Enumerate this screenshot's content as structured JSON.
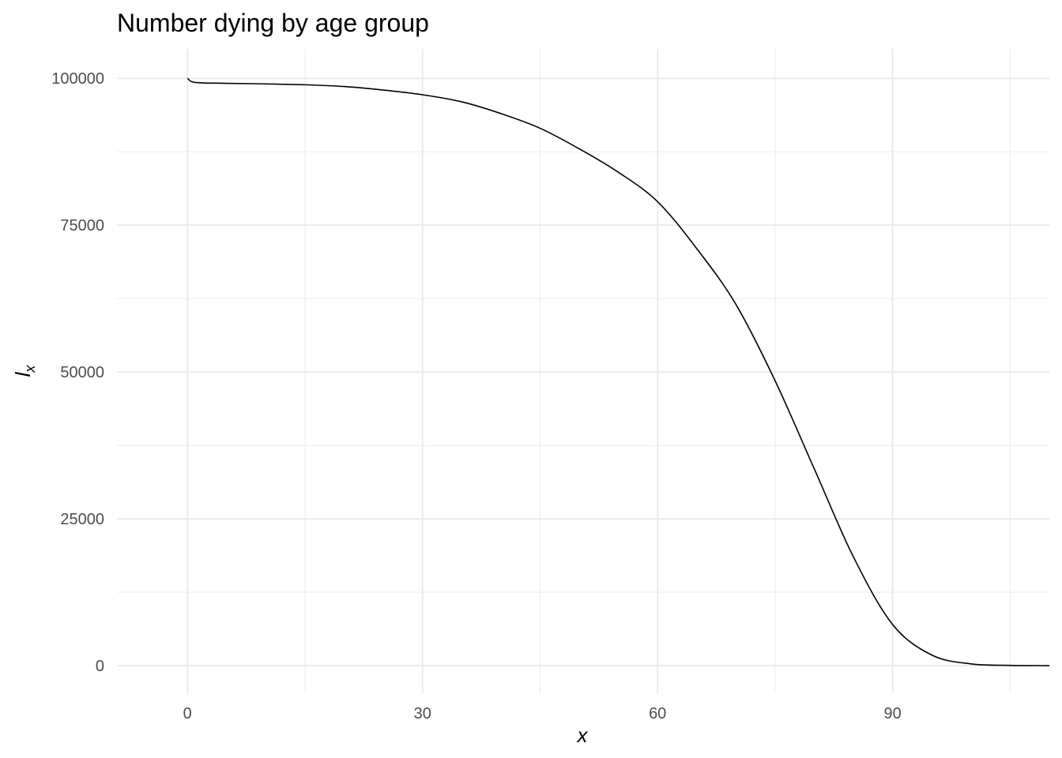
{
  "chart_data": {
    "type": "line",
    "title": "Number dying by age group",
    "xlabel": "x",
    "ylabel_main": "l",
    "ylabel_subscript": "x",
    "xlim": [
      -9,
      110
    ],
    "ylim": [
      -4700,
      105000
    ],
    "x_ticks": [
      0,
      30,
      60,
      90
    ],
    "x_tick_labels": [
      "0",
      "30",
      "60",
      "90"
    ],
    "x_minor_ticks": [
      15,
      45,
      75,
      105
    ],
    "y_ticks": [
      0,
      25000,
      50000,
      75000,
      100000
    ],
    "y_tick_labels": [
      "0",
      "25000",
      "50000",
      "75000",
      "100000"
    ],
    "y_minor_ticks": [
      12500,
      37500,
      62500,
      87500
    ],
    "grid": true,
    "line_color": "#000000",
    "grid_color": "#ebebeb",
    "series": [
      {
        "x": [
          0,
          1,
          5,
          10,
          15,
          20,
          25,
          30,
          35,
          40,
          45,
          50,
          55,
          60,
          65,
          70,
          75,
          80,
          85,
          90,
          95,
          100,
          105,
          110
        ],
        "y": [
          100000,
          99300,
          99150,
          99050,
          98900,
          98600,
          98000,
          97200,
          96000,
          94000,
          91500,
          88000,
          84000,
          79000,
          71000,
          61500,
          48500,
          33500,
          18500,
          7000,
          1800,
          300,
          50,
          0
        ]
      }
    ]
  }
}
